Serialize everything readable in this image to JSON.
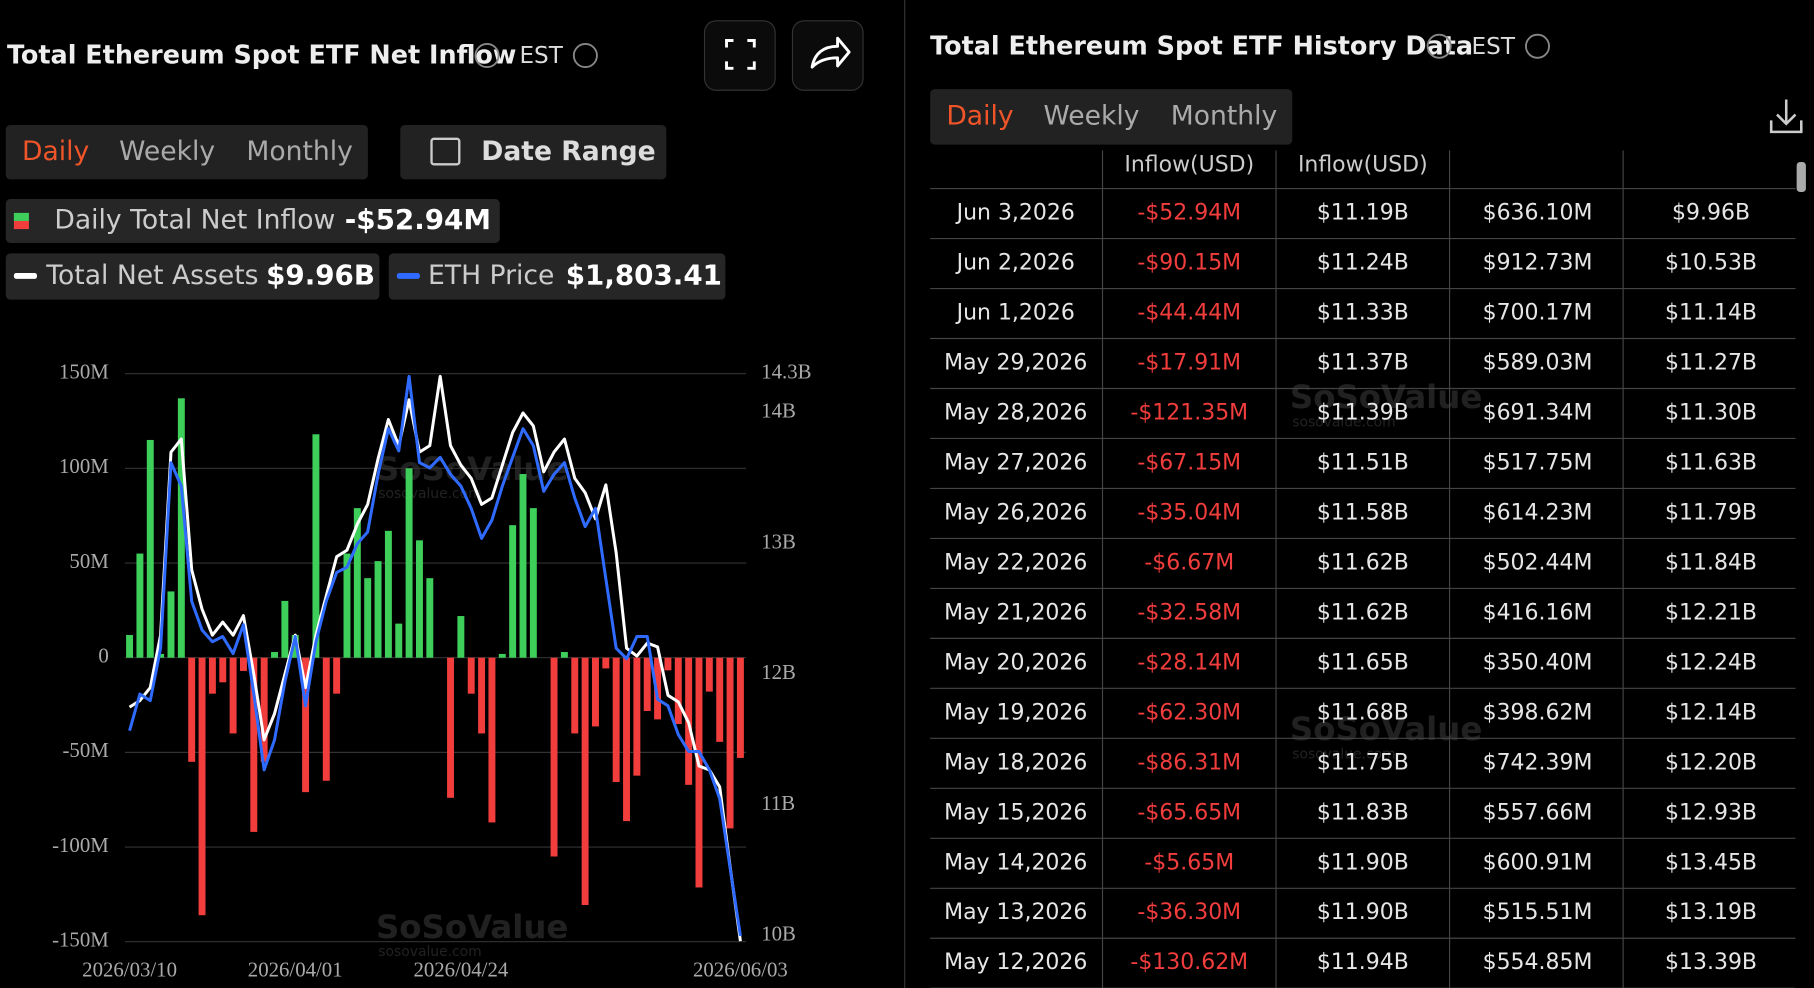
{
  "header": {
    "title": "Total Ethereum Spot ETF Net Inflow",
    "timezone": "EST",
    "tabs": [
      "Daily",
      "Weekly",
      "Monthly"
    ],
    "date_range": "Date Range"
  },
  "legend_values": [
    "-$52.94M",
    "$9.96B",
    "$1,803.41"
  ],
  "watermark": "SoSoValue",
  "watermark_url": "sosovalue.com",
  "chart_data": {
    "type": "combo",
    "categories": [
      "2026/03/10",
      null,
      null,
      null,
      null,
      null,
      null,
      null,
      null,
      null,
      null,
      null,
      null,
      null,
      null,
      null,
      "2026/04/01",
      null,
      null,
      null,
      null,
      null,
      null,
      null,
      null,
      null,
      null,
      null,
      null,
      null,
      null,
      null,
      "2026/04/24",
      null,
      null,
      null,
      null,
      null,
      null,
      null,
      null,
      null,
      null,
      null,
      null,
      null,
      null,
      null,
      null,
      null,
      null,
      null,
      null,
      null,
      null,
      null,
      null,
      null,
      null,
      "2026/06/03"
    ],
    "series": [
      {
        "name": "Daily Total Net Inflow",
        "type": "bar",
        "color": "#3ecf5a",
        "negative_color": "#f23d3d",
        "values": [
          12,
          55,
          115,
          2,
          35,
          137,
          -55,
          -136,
          -19,
          -13,
          -40,
          -7,
          -92,
          -55,
          3,
          30,
          12,
          -71,
          118,
          -65,
          -19,
          55,
          79,
          42,
          51,
          67,
          18,
          100,
          62,
          42,
          0,
          -74,
          22,
          -19,
          -40,
          -87,
          2,
          70,
          97,
          79,
          0,
          -105,
          3,
          -40,
          -130.62,
          -36.3,
          -5.65,
          -65.65,
          -86.31,
          -62.3,
          -28.14,
          -32.58,
          -6.67,
          -35.04,
          -67.15,
          -121.35,
          -17.91,
          -44.44,
          -90.15,
          -52.94
        ]
      },
      {
        "name": "Total Net Assets",
        "type": "line",
        "axis": "y2",
        "color": "#ffffff",
        "values": [
          11.75,
          11.8,
          11.9,
          12.3,
          13.7,
          13.8,
          12.8,
          12.5,
          12.3,
          12.4,
          12.3,
          12.45,
          12.0,
          11.5,
          11.7,
          12.0,
          12.3,
          11.9,
          12.3,
          12.6,
          12.9,
          12.95,
          13.15,
          13.3,
          13.65,
          13.95,
          13.75,
          14.1,
          13.7,
          13.75,
          14.28,
          13.75,
          13.6,
          13.5,
          13.3,
          13.35,
          13.6,
          13.85,
          14.0,
          13.9,
          13.55,
          13.7,
          13.8,
          13.5,
          13.39,
          13.19,
          13.45,
          12.93,
          12.2,
          12.14,
          12.24,
          12.21,
          11.84,
          11.79,
          11.63,
          11.3,
          11.27,
          11.14,
          10.53,
          9.96
        ]
      },
      {
        "name": "ETH Price",
        "type": "line",
        "axis": "y2",
        "color": "#2f6bff",
        "values": [
          11.57,
          11.85,
          11.8,
          12.2,
          13.62,
          13.44,
          12.56,
          12.34,
          12.25,
          12.29,
          12.16,
          12.38,
          11.85,
          11.27,
          11.5,
          11.94,
          12.29,
          11.76,
          12.25,
          12.56,
          12.78,
          12.82,
          13.0,
          13.09,
          13.53,
          13.88,
          13.71,
          14.28,
          13.62,
          13.58,
          13.66,
          13.53,
          13.44,
          13.27,
          13.04,
          13.18,
          13.44,
          13.66,
          13.88,
          13.75,
          13.4,
          13.53,
          13.62,
          13.35,
          13.13,
          13.27,
          12.73,
          12.2,
          12.12,
          12.29,
          12.29,
          11.81,
          11.76,
          11.54,
          11.41,
          11.41,
          11.27,
          11.05,
          10.52,
          10.0
        ]
      }
    ],
    "ylim": [
      -150,
      150
    ],
    "yticks": [
      {
        "value": 150,
        "label": "150M"
      },
      {
        "value": 100,
        "label": "100M"
      },
      {
        "value": 50,
        "label": "50M"
      },
      0,
      {
        "value": -50,
        "label": "-50M"
      },
      {
        "value": -100,
        "label": "-100M"
      },
      {
        "value": -150,
        "label": "-150M"
      }
    ],
    "y2lim": [
      10,
      14.3
    ],
    "y2ticks": [
      {
        "value": 14.3,
        "label": "14.3B"
      },
      {
        "value": 14,
        "label": "14B"
      },
      {
        "value": 13,
        "label": "13B"
      },
      {
        "value": 12,
        "label": "12B"
      },
      {
        "value": 11,
        "label": "11B"
      },
      {
        "value": 10,
        "label": "10B"
      }
    ],
    "grid": true
  },
  "history": {
    "title": "Total Ethereum Spot ETF History Data",
    "timezone": "EST",
    "tabs": [
      "Daily",
      "Weekly",
      "Monthly"
    ],
    "columns": [
      "Inflow(USD)",
      "Inflow(USD)"
    ],
    "rows": [
      [
        "Jun 3,2026",
        "-$52.94M",
        "$11.19B",
        "$636.10M",
        "$9.96B"
      ],
      [
        "Jun 2,2026",
        "-$90.15M",
        "$11.24B",
        "$912.73M",
        "$10.53B"
      ],
      [
        "Jun 1,2026",
        "-$44.44M",
        "$11.33B",
        "$700.17M",
        "$11.14B"
      ],
      [
        "May 29,2026",
        "-$17.91M",
        "$11.37B",
        "$589.03M",
        "$11.27B"
      ],
      [
        "May 28,2026",
        "-$121.35M",
        "$11.39B",
        "$691.34M",
        "$11.30B"
      ],
      [
        "May 27,2026",
        "-$67.15M",
        "$11.51B",
        "$517.75M",
        "$11.63B"
      ],
      [
        "May 26,2026",
        "-$35.04M",
        "$11.58B",
        "$614.23M",
        "$11.79B"
      ],
      [
        "May 22,2026",
        "-$6.67M",
        "$11.62B",
        "$502.44M",
        "$11.84B"
      ],
      [
        "May 21,2026",
        "-$32.58M",
        "$11.62B",
        "$416.16M",
        "$12.21B"
      ],
      [
        "May 20,2026",
        "-$28.14M",
        "$11.65B",
        "$350.40M",
        "$12.24B"
      ],
      [
        "May 19,2026",
        "-$62.30M",
        "$11.68B",
        "$398.62M",
        "$12.14B"
      ],
      [
        "May 18,2026",
        "-$86.31M",
        "$11.75B",
        "$742.39M",
        "$12.20B"
      ],
      [
        "May 15,2026",
        "-$65.65M",
        "$11.83B",
        "$557.66M",
        "$12.93B"
      ],
      [
        "May 14,2026",
        "-$5.65M",
        "$11.90B",
        "$600.91M",
        "$13.45B"
      ],
      [
        "May 13,2026",
        "-$36.30M",
        "$11.90B",
        "$515.51M",
        "$13.19B"
      ],
      [
        "May 12,2026",
        "-$130.62M",
        "$11.94B",
        "$554.85M",
        "$13.39B"
      ]
    ]
  }
}
